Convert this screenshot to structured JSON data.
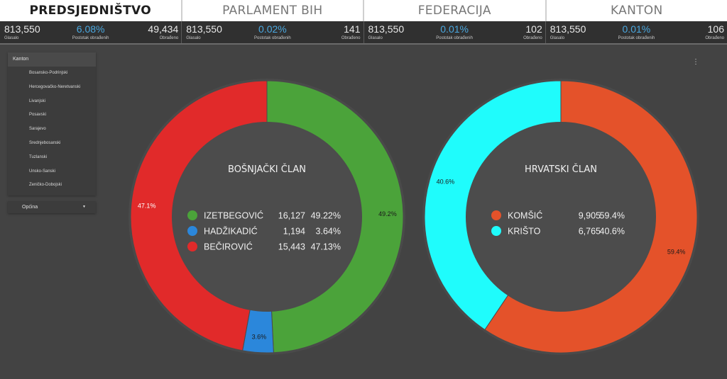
{
  "tabs": [
    {
      "label": "PREDSJEDNIŠTVO",
      "active": true
    },
    {
      "label": "PARLAMENT BIH",
      "active": false
    },
    {
      "label": "FEDERACIJA",
      "active": false
    },
    {
      "label": "KANTON",
      "active": false
    }
  ],
  "stats": [
    {
      "glasalo": "813,550",
      "glasalo_label": "Glasalo",
      "postotak": "6.08%",
      "postotak_label": "Postotak obrađenih",
      "obradeno": "49,434",
      "obradeno_label": "Obrađeno"
    },
    {
      "glasalo": "813,550",
      "glasalo_label": "Glasalo",
      "postotak": "0.02%",
      "postotak_label": "Postotak obrađenih",
      "obradeno": "141",
      "obradeno_label": "Obrađeno"
    },
    {
      "glasalo": "813,550",
      "glasalo_label": "Glasalo",
      "postotak": "0.01%",
      "postotak_label": "Postotak obrađenih",
      "obradeno": "102",
      "obradeno_label": "Obrađeno"
    },
    {
      "glasalo": "813,550",
      "glasalo_label": "Glasalo",
      "postotak": "0.01%",
      "postotak_label": "Postotak obrađenih",
      "obradeno": "106",
      "obradeno_label": "Obrađeno"
    }
  ],
  "filter": {
    "title": "Kanton",
    "items": [
      "Bosansko-Podrinjski",
      "Hercegovačko-Neretvanski",
      "Livanjski",
      "Posavski",
      "Sarajevo",
      "Srednjebosanski",
      "Tuzlanski",
      "Unsko-Sanski",
      "Zeničko-Dobojski"
    ],
    "dropdown_label": "Općina",
    "dropdown_caret": "▼"
  },
  "menu_icon": "⋮",
  "chart_data": [
    {
      "type": "pie",
      "title": "BOŠNJAČKI ČLAN",
      "categories": [
        "IZETBEGOVIĆ",
        "HADŽIKADIĆ",
        "BEČIROVIĆ"
      ],
      "values": [
        16127,
        1194,
        15443
      ],
      "value_labels": [
        "16,127",
        "1,194",
        "15,443"
      ],
      "percent_labels": [
        "49.22%",
        "3.64%",
        "47.13%"
      ],
      "slice_labels": [
        "49.2%",
        "3.6%",
        "47.1%"
      ],
      "colors": [
        "#4ba33a",
        "#2b87db",
        "#e12a2a"
      ],
      "slice_label_colors": [
        "#1a1a1a",
        "#1a1a1a",
        "#ffffff"
      ],
      "donut": true,
      "legend": "center"
    },
    {
      "type": "pie",
      "title": "HRVATSKI ČLAN",
      "categories": [
        "KOMŠIĆ",
        "KRIŠTO"
      ],
      "values": [
        9905,
        6765
      ],
      "value_labels": [
        "9,905",
        "6,765"
      ],
      "percent_labels": [
        "59.4%",
        "40.6%"
      ],
      "slice_labels": [
        "59.4%",
        "40.6%"
      ],
      "colors": [
        "#e4522a",
        "#1ffcfc"
      ],
      "slice_label_colors": [
        "#1a1a1a",
        "#1a1a1a"
      ],
      "donut": true,
      "legend": "center"
    }
  ]
}
